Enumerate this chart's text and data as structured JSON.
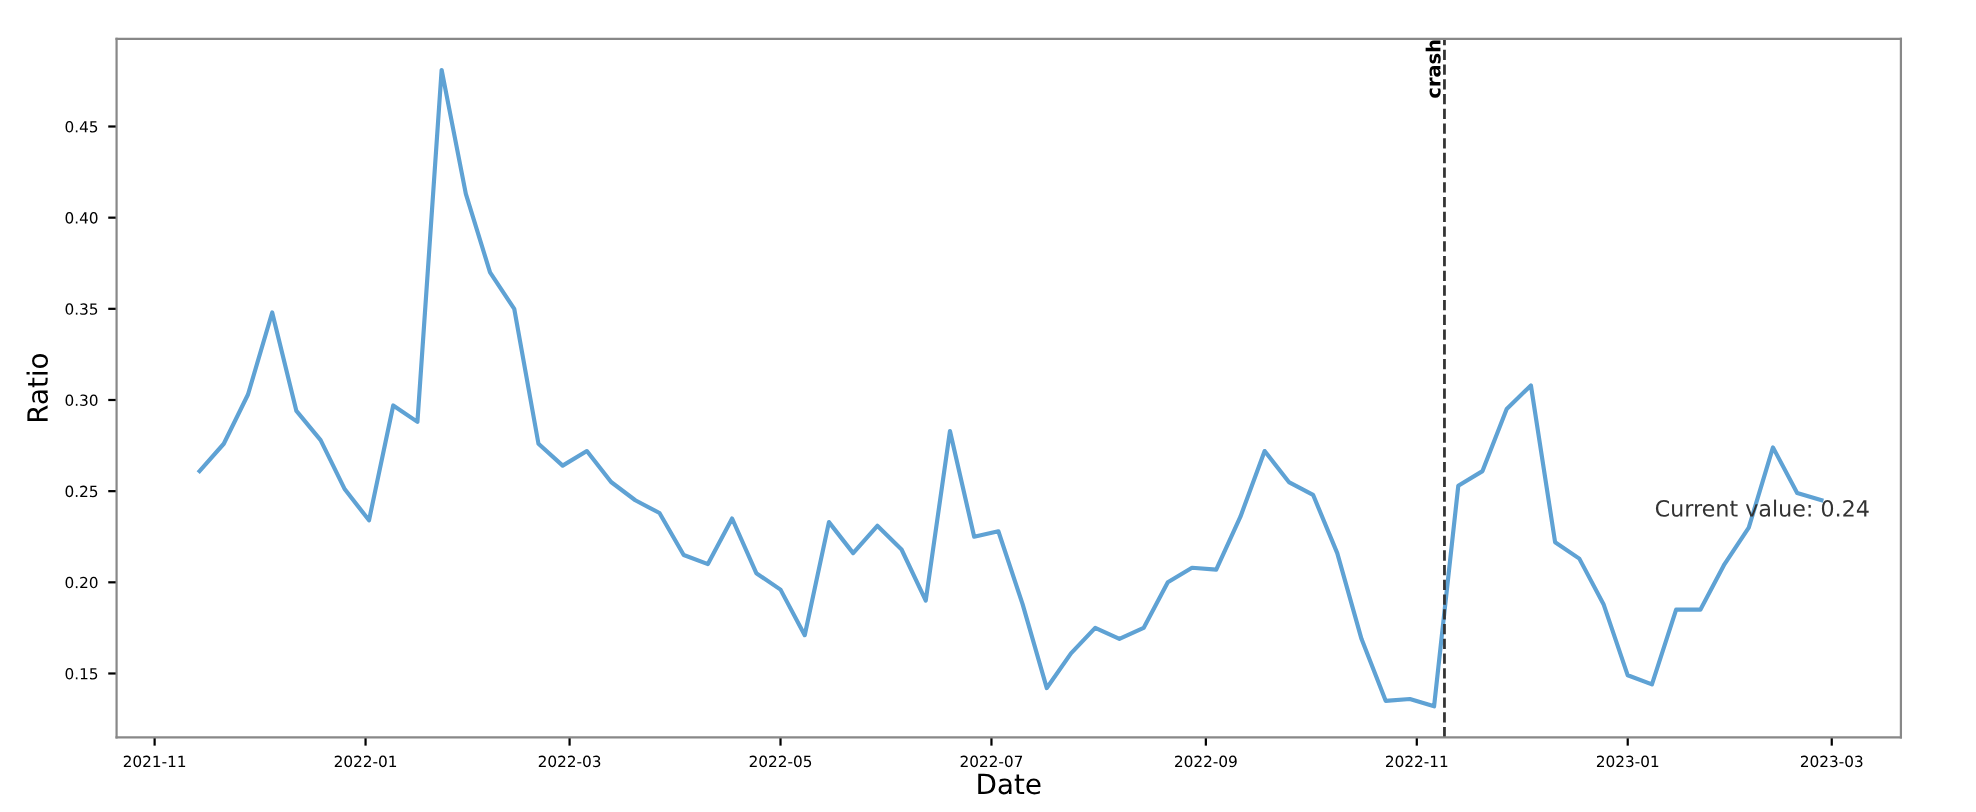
{
  "chart_data": {
    "type": "line",
    "xlabel": "Date",
    "ylabel": "Ratio",
    "x": [
      "2021-11-14",
      "2021-11-21",
      "2021-11-28",
      "2021-12-05",
      "2021-12-12",
      "2021-12-19",
      "2021-12-26",
      "2022-01-02",
      "2022-01-09",
      "2022-01-16",
      "2022-01-23",
      "2022-01-30",
      "2022-02-06",
      "2022-02-13",
      "2022-02-20",
      "2022-02-27",
      "2022-03-06",
      "2022-03-13",
      "2022-03-20",
      "2022-03-27",
      "2022-04-03",
      "2022-04-10",
      "2022-04-17",
      "2022-04-24",
      "2022-05-01",
      "2022-05-08",
      "2022-05-15",
      "2022-05-22",
      "2022-05-29",
      "2022-06-05",
      "2022-06-12",
      "2022-06-19",
      "2022-06-26",
      "2022-07-03",
      "2022-07-10",
      "2022-07-17",
      "2022-07-24",
      "2022-07-31",
      "2022-08-07",
      "2022-08-14",
      "2022-08-21",
      "2022-08-28",
      "2022-09-04",
      "2022-09-11",
      "2022-09-18",
      "2022-09-25",
      "2022-10-02",
      "2022-10-09",
      "2022-10-16",
      "2022-10-23",
      "2022-10-30",
      "2022-11-06",
      "2022-11-13",
      "2022-11-20",
      "2022-11-27",
      "2022-12-04",
      "2022-12-11",
      "2022-12-18",
      "2022-12-25",
      "2023-01-01",
      "2023-01-08",
      "2023-01-15",
      "2023-01-22",
      "2023-01-29",
      "2023-02-05",
      "2023-02-12",
      "2023-02-19",
      "2023-02-26"
    ],
    "series": [
      {
        "color": "#5fa2d4",
        "values": [
          0.261,
          0.276,
          0.303,
          0.348,
          0.294,
          0.278,
          0.251,
          0.234,
          0.297,
          0.288,
          0.481,
          0.413,
          0.37,
          0.35,
          0.276,
          0.264,
          0.272,
          0.255,
          0.245,
          0.238,
          0.215,
          0.21,
          0.235,
          0.205,
          0.196,
          0.171,
          0.233,
          0.216,
          0.231,
          0.218,
          0.19,
          0.283,
          0.225,
          0.228,
          0.188,
          0.142,
          0.161,
          0.175,
          0.169,
          0.175,
          0.2,
          0.208,
          0.207,
          0.236,
          0.272,
          0.255,
          0.248,
          0.216,
          0.169,
          0.135,
          0.136,
          0.132,
          0.253,
          0.261,
          0.295,
          0.308,
          0.222,
          0.213,
          0.188,
          0.149,
          0.144,
          0.185,
          0.185,
          0.21,
          0.23,
          0.274,
          0.249,
          0.245
        ]
      }
    ],
    "xlim": [
      "2021-10-21",
      "2023-03-21"
    ],
    "xticks": [
      {
        "value": "2021-11-01",
        "label": "2021-11"
      },
      {
        "value": "2022-01-01",
        "label": "2022-01"
      },
      {
        "value": "2022-03-01",
        "label": "2022-03"
      },
      {
        "value": "2022-05-01",
        "label": "2022-05"
      },
      {
        "value": "2022-07-01",
        "label": "2022-07"
      },
      {
        "value": "2022-09-01",
        "label": "2022-09"
      },
      {
        "value": "2022-11-01",
        "label": "2022-11"
      },
      {
        "value": "2023-01-01",
        "label": "2023-01"
      },
      {
        "value": "2023-03-01",
        "label": "2023-03"
      }
    ],
    "ylim": [
      0.115,
      0.498
    ],
    "yticks": [
      {
        "value": 0.15,
        "label": "0.15"
      },
      {
        "value": 0.2,
        "label": "0.20"
      },
      {
        "value": 0.25,
        "label": "0.25"
      },
      {
        "value": 0.3,
        "label": "0.30"
      },
      {
        "value": 0.35,
        "label": "0.35"
      },
      {
        "value": 0.4,
        "label": "0.40"
      },
      {
        "value": 0.45,
        "label": "0.45"
      }
    ],
    "ref_lines": [
      {
        "axis": "x",
        "value": "2022-11-09",
        "label": "crash",
        "color": "#333333",
        "line_style": "dashed"
      }
    ],
    "annotations": [
      "Current value: 0.24"
    ],
    "grid": false,
    "legend": false,
    "marker": "none",
    "line_style": "solid"
  }
}
